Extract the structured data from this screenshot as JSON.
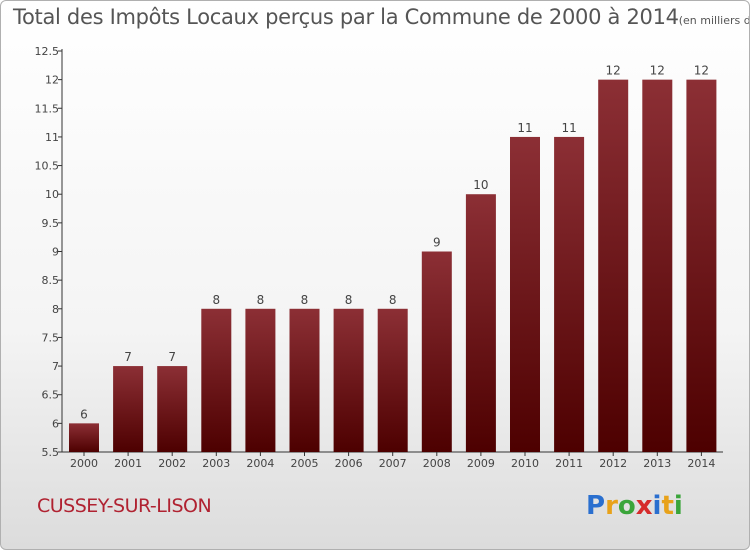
{
  "header": {
    "title": "Total des Impôts Locaux perçus par la Commune de 2000 à 2014",
    "unit": "(en milliers d'€)"
  },
  "footer": {
    "commune": "CUSSEY-SUR-LISON",
    "logo_letters": [
      "P",
      "r",
      "o",
      "x",
      "i",
      "t",
      "i"
    ],
    "logo_colors": [
      "#2a6fcf",
      "#e8a21a",
      "#3aa53a",
      "#d62b2b",
      "#2a6fcf",
      "#e8a21a",
      "#3aa53a"
    ]
  },
  "colors": {
    "bar_top": "#8c2f35",
    "bar_bottom": "#4d0000",
    "axis": "#333333"
  },
  "chart_data": {
    "type": "bar",
    "title": "Total des Impôts Locaux perçus par la Commune de 2000 à 2014",
    "xlabel": "",
    "ylabel": "(en milliers d'€)",
    "categories": [
      "2000",
      "2001",
      "2002",
      "2003",
      "2004",
      "2005",
      "2006",
      "2007",
      "2008",
      "2009",
      "2010",
      "2011",
      "2012",
      "2013",
      "2014"
    ],
    "values": [
      6,
      7,
      7,
      8,
      8,
      8,
      8,
      8,
      9,
      10,
      11,
      11,
      12,
      12,
      12
    ],
    "labels": [
      "6",
      "7",
      "7",
      "8",
      "8",
      "8",
      "8",
      "8",
      "9",
      "10",
      "11",
      "11",
      "12",
      "12",
      "12"
    ],
    "ylim": [
      5.5,
      12.5
    ],
    "yticks": [
      5.5,
      6,
      6.5,
      7,
      7.5,
      8,
      8.5,
      9,
      9.5,
      10,
      10.5,
      11,
      11.5,
      12,
      12.5
    ],
    "ytick_labels": [
      "5.5",
      "6",
      "6.5",
      "7",
      "7.5",
      "8",
      "8.5",
      "9",
      "9.5",
      "10",
      "10.5",
      "11",
      "11.5",
      "12",
      "12.5"
    ],
    "grid": false,
    "legend": "none"
  }
}
